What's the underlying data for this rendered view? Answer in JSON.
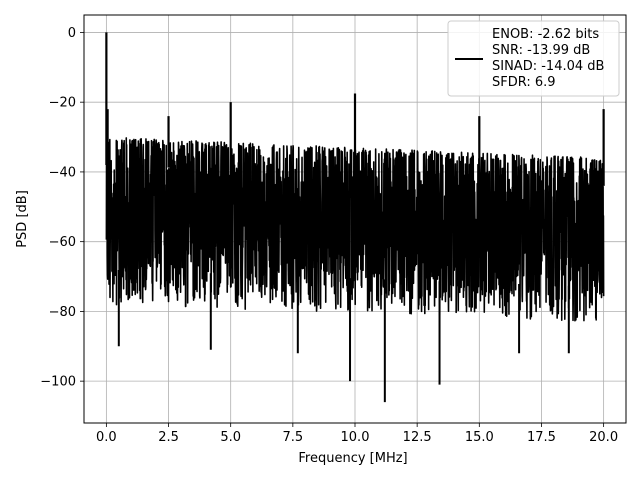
{
  "chart_data": {
    "type": "line",
    "xlabel": "Frequency [MHz]",
    "ylabel": "PSD [dB]",
    "xlim": [
      -0.9,
      20.9
    ],
    "ylim": [
      -112,
      5
    ],
    "xticks": [
      0.0,
      2.5,
      5.0,
      7.5,
      10.0,
      12.5,
      15.0,
      17.5,
      20.0
    ],
    "xtick_labels": [
      "0.0",
      "2.5",
      "5.0",
      "7.5",
      "10.0",
      "12.5",
      "15.0",
      "17.5",
      "20.0"
    ],
    "yticks": [
      0,
      -20,
      -40,
      -60,
      -80,
      -100
    ],
    "ytick_labels": [
      "0",
      "−20",
      "−40",
      "−60",
      "−80",
      "−100"
    ],
    "grid": true,
    "legend_position": "top-right",
    "series": [
      {
        "name": "ENOB: -2.62 bits\nSNR: -13.99 dB\nSINAD: -14.04 dB\nSFDR: 6.9",
        "color": "#000000",
        "noise_floor_top": [
          [
            0.0,
            -30
          ],
          [
            20.0,
            -36
          ]
        ],
        "noise_floor_bottom": [
          [
            0.0,
            -72
          ],
          [
            20.0,
            -77
          ]
        ],
        "spikes": [
          {
            "x": 0.0,
            "y": 0
          },
          {
            "x": 0.05,
            "y": -22
          },
          {
            "x": 2.5,
            "y": -24
          },
          {
            "x": 5.0,
            "y": -20
          },
          {
            "x": 10.0,
            "y": -17.5
          },
          {
            "x": 15.0,
            "y": -24
          },
          {
            "x": 20.0,
            "y": -22
          }
        ],
        "dips": [
          {
            "x": 0.5,
            "y": -90
          },
          {
            "x": 4.2,
            "y": -91
          },
          {
            "x": 7.7,
            "y": -92
          },
          {
            "x": 9.8,
            "y": -100
          },
          {
            "x": 11.2,
            "y": -106
          },
          {
            "x": 13.4,
            "y": -101
          },
          {
            "x": 16.6,
            "y": -92
          },
          {
            "x": 18.6,
            "y": -92
          }
        ]
      }
    ]
  }
}
